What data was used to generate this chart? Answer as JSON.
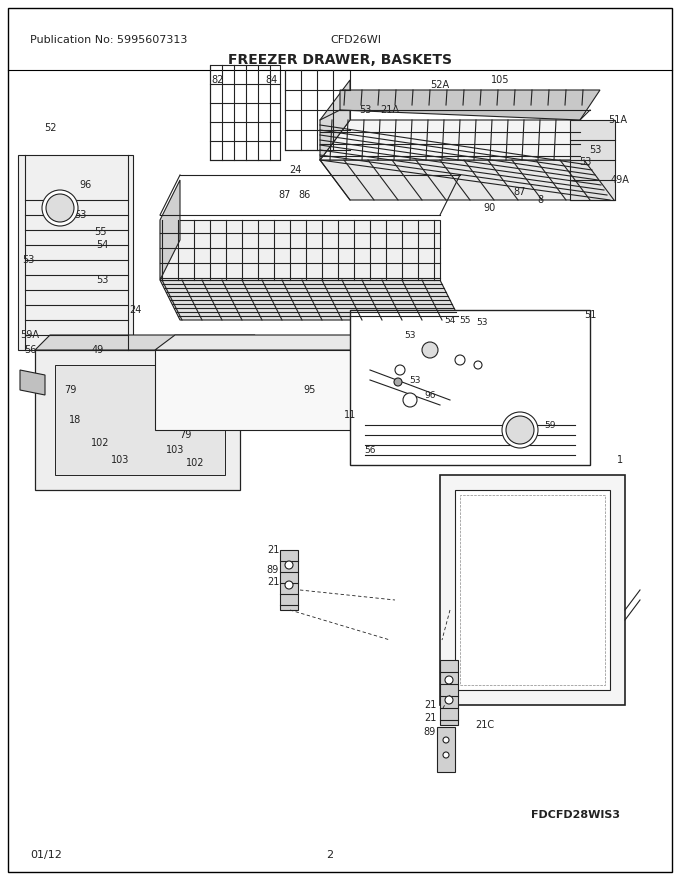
{
  "pub_no": "Publication No: 5995607313",
  "model": "CFD26WI",
  "title": "FREEZER DRAWER, BASKETS",
  "diagram_id": "FDCFD28WIS3",
  "date": "01/12",
  "page": "2",
  "bg_color": "#ffffff",
  "border_color": "#000000",
  "text_color": "#222222",
  "title_fontsize": 10,
  "label_fontsize": 7.5,
  "header_fontsize": 8
}
